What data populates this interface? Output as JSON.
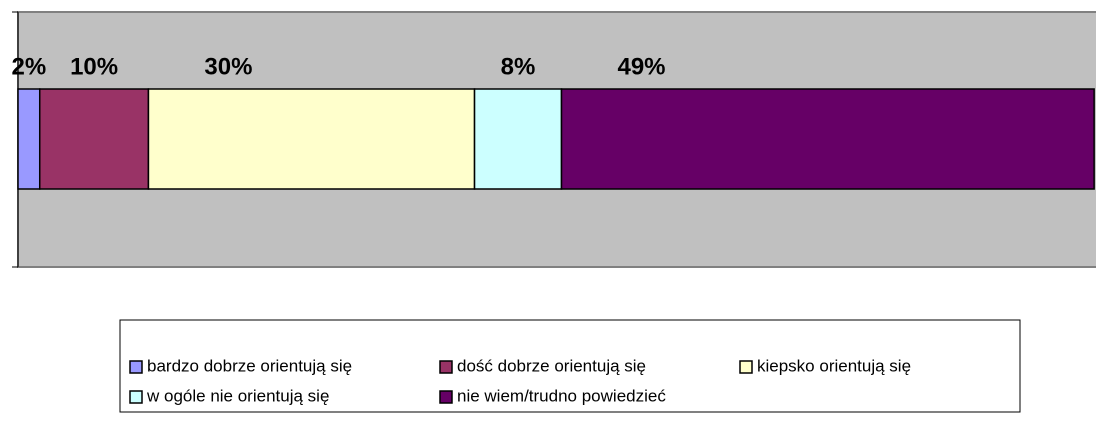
{
  "chart_data": {
    "type": "stacked_bar_horizontal",
    "series": [
      {
        "name": "bardzo dobrze orientują się",
        "color": "#9999ff",
        "values": [
          2
        ],
        "value_labels": [
          "2%"
        ]
      },
      {
        "name": "dość dobrze orientują się",
        "color": "#993366",
        "values": [
          10
        ],
        "value_labels": [
          "10%"
        ]
      },
      {
        "name": "kiepsko orientują się",
        "color": "#ffffcc",
        "values": [
          30
        ],
        "value_labels": [
          "30%"
        ]
      },
      {
        "name": "w ogóle nie orientują się",
        "color": "#ccffff",
        "values": [
          8
        ],
        "value_labels": [
          "8%"
        ]
      },
      {
        "name": "nie wiem/trudno powiedzieć",
        "color": "#660066",
        "values": [
          49
        ],
        "value_labels": [
          "49%"
        ]
      }
    ],
    "xlim": [
      0,
      100
    ],
    "legend": "bottom"
  }
}
